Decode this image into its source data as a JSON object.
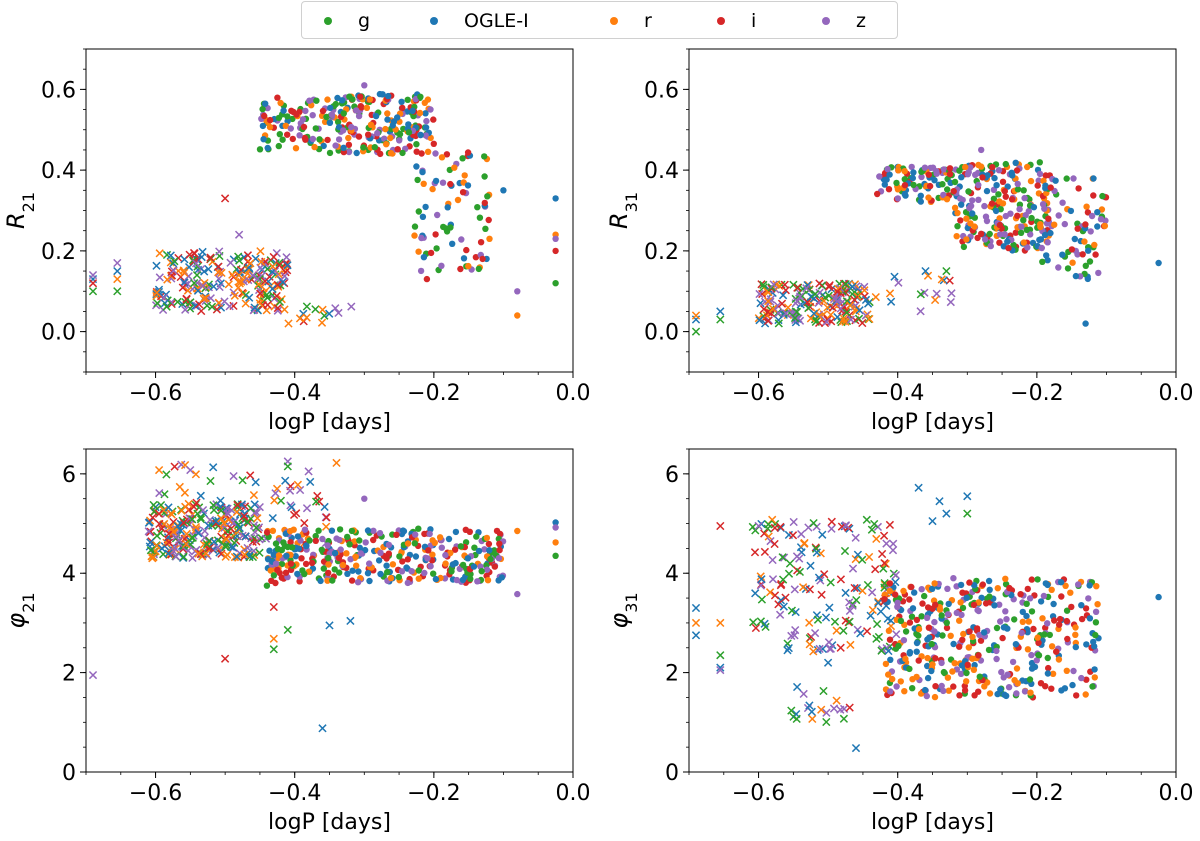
{
  "legend": {
    "position": "top-center",
    "entries": [
      {
        "label": "g",
        "color": "#2ca02c"
      },
      {
        "label": "OGLE-I",
        "color": "#1f77b4"
      },
      {
        "label": "r",
        "color": "#ff7f0e"
      },
      {
        "label": "i",
        "color": "#d62728"
      },
      {
        "label": "z",
        "color": "#9467bd"
      }
    ]
  },
  "marker_key": {
    "dot": "circle marker",
    "cross": "x marker"
  },
  "chart_data": [
    {
      "type": "scatter",
      "xlabel": "logP [days]",
      "ylabel": "R21",
      "xlim": [
        -0.7,
        0.0
      ],
      "ylim": [
        -0.1,
        0.7
      ],
      "xticks": [
        "−0.6",
        "−0.4",
        "−0.2",
        "0.0"
      ],
      "yticks": [
        "0.0",
        "0.2",
        "0.4",
        "0.6"
      ],
      "groups": [
        {
          "marker": "cross",
          "x": [
            -0.6,
            -0.41
          ],
          "y": [
            0.05,
            0.2
          ],
          "n": 230
        },
        {
          "marker": "cross",
          "x": [
            -0.41,
            -0.31
          ],
          "y": [
            0.02,
            0.07
          ],
          "n": 14
        },
        {
          "marker": "dot",
          "x": [
            -0.45,
            -0.35
          ],
          "y": [
            0.45,
            0.58
          ],
          "n": 80
        },
        {
          "marker": "dot",
          "x": [
            -0.35,
            -0.2
          ],
          "y": [
            0.44,
            0.59
          ],
          "n": 200
        },
        {
          "marker": "dot",
          "x": [
            -0.23,
            -0.12
          ],
          "y": [
            0.15,
            0.45
          ],
          "n": 80
        }
      ],
      "points": [
        {
          "series": "g",
          "marker": "cross",
          "x": -0.69,
          "y": 0.1
        },
        {
          "series": "OGLE-I",
          "marker": "cross",
          "x": -0.69,
          "y": 0.13
        },
        {
          "series": "z",
          "marker": "cross",
          "x": -0.69,
          "y": 0.14
        },
        {
          "series": "i",
          "marker": "cross",
          "x": -0.69,
          "y": 0.12
        },
        {
          "series": "g",
          "marker": "cross",
          "x": -0.655,
          "y": 0.1
        },
        {
          "series": "z",
          "marker": "cross",
          "x": -0.655,
          "y": 0.17
        },
        {
          "series": "OGLE-I",
          "marker": "cross",
          "x": -0.655,
          "y": 0.15
        },
        {
          "series": "r",
          "marker": "cross",
          "x": -0.655,
          "y": 0.13
        },
        {
          "series": "i",
          "marker": "cross",
          "x": -0.5,
          "y": 0.33
        },
        {
          "series": "z",
          "marker": "cross",
          "x": -0.48,
          "y": 0.24
        },
        {
          "series": "z",
          "marker": "dot",
          "x": -0.3,
          "y": 0.61
        },
        {
          "series": "OGLE-I",
          "marker": "dot",
          "x": -0.025,
          "y": 0.33
        },
        {
          "series": "r",
          "marker": "dot",
          "x": -0.025,
          "y": 0.24
        },
        {
          "series": "z",
          "marker": "dot",
          "x": -0.025,
          "y": 0.23
        },
        {
          "series": "i",
          "marker": "dot",
          "x": -0.025,
          "y": 0.2
        },
        {
          "series": "g",
          "marker": "dot",
          "x": -0.025,
          "y": 0.12
        },
        {
          "series": "z",
          "marker": "dot",
          "x": -0.08,
          "y": 0.1
        },
        {
          "series": "r",
          "marker": "dot",
          "x": -0.08,
          "y": 0.04
        },
        {
          "series": "OGLE-I",
          "marker": "dot",
          "x": -0.1,
          "y": 0.35
        },
        {
          "series": "i",
          "marker": "dot",
          "x": -0.21,
          "y": 0.13
        },
        {
          "series": "r",
          "marker": "dot",
          "x": -0.12,
          "y": 0.23
        },
        {
          "series": "i",
          "marker": "dot",
          "x": -0.13,
          "y": 0.18
        }
      ]
    },
    {
      "type": "scatter",
      "xlabel": "logP [days]",
      "ylabel": "R31",
      "xlim": [
        -0.7,
        0.0
      ],
      "ylim": [
        -0.1,
        0.7
      ],
      "xticks": [
        "−0.6",
        "−0.4",
        "−0.2",
        "0.0"
      ],
      "yticks": [
        "0.0",
        "0.2",
        "0.4",
        "0.6"
      ],
      "groups": [
        {
          "marker": "cross",
          "x": [
            -0.6,
            -0.44
          ],
          "y": [
            0.02,
            0.12
          ],
          "n": 200
        },
        {
          "marker": "cross",
          "x": [
            -0.44,
            -0.32
          ],
          "y": [
            0.05,
            0.14
          ],
          "n": 16
        },
        {
          "marker": "dot",
          "x": [
            -0.43,
            -0.32
          ],
          "y": [
            0.32,
            0.41
          ],
          "n": 90
        },
        {
          "marker": "dot",
          "x": [
            -0.32,
            -0.18
          ],
          "y": [
            0.2,
            0.42
          ],
          "n": 220
        },
        {
          "marker": "dot",
          "x": [
            -0.2,
            -0.1
          ],
          "y": [
            0.13,
            0.38
          ],
          "n": 80
        }
      ],
      "points": [
        {
          "series": "g",
          "marker": "cross",
          "x": -0.69,
          "y": 0.0
        },
        {
          "series": "OGLE-I",
          "marker": "cross",
          "x": -0.69,
          "y": 0.03
        },
        {
          "series": "r",
          "marker": "cross",
          "x": -0.69,
          "y": 0.04
        },
        {
          "series": "g",
          "marker": "cross",
          "x": -0.655,
          "y": 0.03
        },
        {
          "series": "OGLE-I",
          "marker": "cross",
          "x": -0.655,
          "y": 0.05
        },
        {
          "series": "z",
          "marker": "dot",
          "x": -0.28,
          "y": 0.45
        },
        {
          "series": "OGLE-I",
          "marker": "dot",
          "x": -0.025,
          "y": 0.17
        },
        {
          "series": "OGLE-I",
          "marker": "dot",
          "x": -0.13,
          "y": 0.02
        },
        {
          "series": "OGLE-I",
          "marker": "cross",
          "x": -0.36,
          "y": 0.15
        },
        {
          "series": "g",
          "marker": "cross",
          "x": -0.33,
          "y": 0.15
        }
      ]
    },
    {
      "type": "scatter",
      "xlabel": "logP [days]",
      "ylabel": "φ21",
      "xlim": [
        -0.7,
        0.0
      ],
      "ylim": [
        0.0,
        6.5
      ],
      "xticks": [
        "−0.6",
        "−0.4",
        "−0.2",
        "0.0"
      ],
      "yticks": [
        "0",
        "2",
        "4",
        "6"
      ],
      "groups": [
        {
          "marker": "cross",
          "x": [
            -0.61,
            -0.45
          ],
          "y": [
            4.3,
            5.4
          ],
          "n": 260
        },
        {
          "marker": "cross",
          "x": [
            -0.6,
            -0.45
          ],
          "y": [
            5.3,
            6.2
          ],
          "n": 25
        },
        {
          "marker": "cross",
          "x": [
            -0.45,
            -0.35
          ],
          "y": [
            4.6,
            6.0
          ],
          "n": 30
        },
        {
          "marker": "dot",
          "x": [
            -0.44,
            -0.1
          ],
          "y": [
            3.8,
            4.9
          ],
          "n": 380
        }
      ],
      "points": [
        {
          "series": "z",
          "marker": "cross",
          "x": -0.69,
          "y": 1.95
        },
        {
          "series": "i",
          "marker": "cross",
          "x": -0.5,
          "y": 2.28
        },
        {
          "series": "OGLE-I",
          "marker": "cross",
          "x": -0.36,
          "y": 0.88
        },
        {
          "series": "OGLE-I",
          "marker": "cross",
          "x": -0.32,
          "y": 3.04
        },
        {
          "series": "OGLE-I",
          "marker": "cross",
          "x": -0.35,
          "y": 2.95
        },
        {
          "series": "r",
          "marker": "cross",
          "x": -0.43,
          "y": 2.68
        },
        {
          "series": "g",
          "marker": "cross",
          "x": -0.43,
          "y": 2.47
        },
        {
          "series": "g",
          "marker": "cross",
          "x": -0.41,
          "y": 2.86
        },
        {
          "series": "i",
          "marker": "cross",
          "x": -0.43,
          "y": 3.32
        },
        {
          "series": "z",
          "marker": "dot",
          "x": -0.08,
          "y": 3.58
        },
        {
          "series": "OGLE-I",
          "marker": "dot",
          "x": -0.025,
          "y": 5.02
        },
        {
          "series": "z",
          "marker": "dot",
          "x": -0.025,
          "y": 4.92
        },
        {
          "series": "r",
          "marker": "dot",
          "x": -0.025,
          "y": 4.62
        },
        {
          "series": "g",
          "marker": "dot",
          "x": -0.025,
          "y": 4.35
        },
        {
          "series": "r",
          "marker": "dot",
          "x": -0.08,
          "y": 4.85
        },
        {
          "series": "r",
          "marker": "cross",
          "x": -0.34,
          "y": 6.22
        },
        {
          "series": "z",
          "marker": "cross",
          "x": -0.41,
          "y": 6.25
        },
        {
          "series": "g",
          "marker": "cross",
          "x": -0.41,
          "y": 6.15
        },
        {
          "series": "z",
          "marker": "cross",
          "x": -0.38,
          "y": 6.05
        },
        {
          "series": "z",
          "marker": "dot",
          "x": -0.3,
          "y": 5.5
        },
        {
          "series": "g",
          "marker": "dot",
          "x": -0.44,
          "y": 3.75
        }
      ]
    },
    {
      "type": "scatter",
      "xlabel": "logP [days]",
      "ylabel": "φ31",
      "xlim": [
        -0.7,
        0.0
      ],
      "ylim": [
        0.0,
        6.5
      ],
      "xticks": [
        "−0.6",
        "−0.4",
        "−0.2",
        "0.0"
      ],
      "yticks": [
        "0",
        "2",
        "4",
        "6"
      ],
      "groups": [
        {
          "marker": "cross",
          "x": [
            -0.61,
            -0.4
          ],
          "y": [
            2.4,
            5.1
          ],
          "n": 180
        },
        {
          "marker": "cross",
          "x": [
            -0.56,
            -0.46
          ],
          "y": [
            1.0,
            1.8
          ],
          "n": 20
        },
        {
          "marker": "dot",
          "x": [
            -0.42,
            -0.11
          ],
          "y": [
            1.5,
            3.9
          ],
          "n": 420
        }
      ],
      "points": [
        {
          "series": "OGLE-I",
          "marker": "cross",
          "x": -0.69,
          "y": 3.3
        },
        {
          "series": "r",
          "marker": "cross",
          "x": -0.69,
          "y": 3.0
        },
        {
          "series": "OGLE-I",
          "marker": "cross",
          "x": -0.69,
          "y": 2.75
        },
        {
          "series": "i",
          "marker": "cross",
          "x": -0.655,
          "y": 4.95
        },
        {
          "series": "r",
          "marker": "cross",
          "x": -0.655,
          "y": 3.0
        },
        {
          "series": "g",
          "marker": "cross",
          "x": -0.655,
          "y": 2.35
        },
        {
          "series": "OGLE-I",
          "marker": "cross",
          "x": -0.655,
          "y": 2.1
        },
        {
          "series": "z",
          "marker": "cross",
          "x": -0.655,
          "y": 2.05
        },
        {
          "series": "OGLE-I",
          "marker": "cross",
          "x": -0.46,
          "y": 0.48
        },
        {
          "series": "z",
          "marker": "cross",
          "x": -0.6,
          "y": 4.95
        },
        {
          "series": "OGLE-I",
          "marker": "cross",
          "x": -0.37,
          "y": 5.72
        },
        {
          "series": "OGLE-I",
          "marker": "cross",
          "x": -0.34,
          "y": 5.45
        },
        {
          "series": "OGLE-I",
          "marker": "cross",
          "x": -0.3,
          "y": 5.55
        },
        {
          "series": "g",
          "marker": "cross",
          "x": -0.3,
          "y": 5.2
        },
        {
          "series": "OGLE-I",
          "marker": "cross",
          "x": -0.33,
          "y": 5.2
        },
        {
          "series": "OGLE-I",
          "marker": "cross",
          "x": -0.35,
          "y": 5.05
        },
        {
          "series": "OGLE-I",
          "marker": "dot",
          "x": -0.025,
          "y": 3.52
        },
        {
          "series": "z",
          "marker": "dot",
          "x": -0.32,
          "y": 3.9
        },
        {
          "series": "g",
          "marker": "dot",
          "x": -0.12,
          "y": 1.72
        },
        {
          "series": "OGLE-I",
          "marker": "cross",
          "x": -0.5,
          "y": 2.2
        }
      ]
    }
  ]
}
